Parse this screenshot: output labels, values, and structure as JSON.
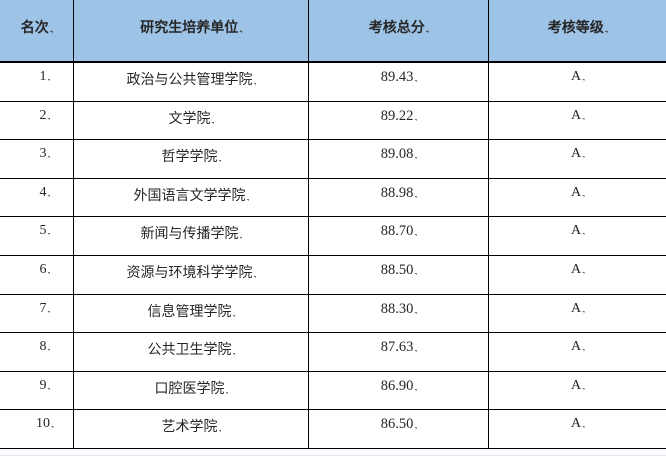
{
  "table": {
    "end_mark": ".,",
    "colors": {
      "header_bg": "#9DC3E6",
      "border": "#000000",
      "text": "#262626"
    },
    "columns": [
      {
        "label": "名次"
      },
      {
        "label": "研究生培养单位"
      },
      {
        "label": "考核总分"
      },
      {
        "label": "考核等级"
      }
    ],
    "rows": [
      {
        "rank": "1",
        "unit": "政治与公共管理学院",
        "score": "89.43",
        "grade": "A"
      },
      {
        "rank": "2",
        "unit": "文学院",
        "score": "89.22",
        "grade": "A"
      },
      {
        "rank": "3",
        "unit": "哲学学院",
        "score": "89.08",
        "grade": "A"
      },
      {
        "rank": "4",
        "unit": "外国语言文学学院",
        "score": "88.98",
        "grade": "A"
      },
      {
        "rank": "5",
        "unit": "新闻与传播学院",
        "score": "88.70",
        "grade": "A"
      },
      {
        "rank": "6",
        "unit": "资源与环境科学学院",
        "score": "88.50",
        "grade": "A"
      },
      {
        "rank": "7",
        "unit": "信息管理学院",
        "score": "88.30",
        "grade": "A"
      },
      {
        "rank": "8",
        "unit": "公共卫生学院",
        "score": "87.63",
        "grade": "A"
      },
      {
        "rank": "9",
        "unit": "口腔医学院",
        "score": "86.90",
        "grade": "A"
      },
      {
        "rank": "10",
        "unit": "艺术学院",
        "score": "86.50",
        "grade": "A"
      }
    ]
  }
}
